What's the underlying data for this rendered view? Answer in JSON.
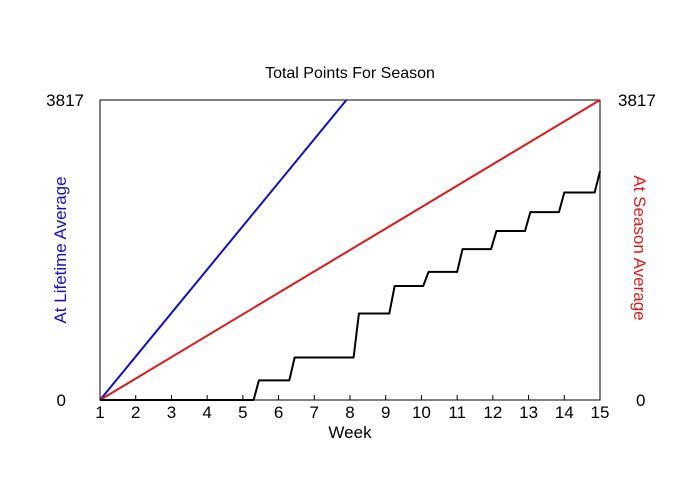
{
  "chart_data": {
    "type": "line",
    "title": "Total Points For Season",
    "xlabel": "Week",
    "ylabel_left": "At Lifetime Average",
    "ylabel_right": "At Season Average",
    "xlim": [
      1,
      15
    ],
    "ylim": [
      0,
      3817
    ],
    "x_ticks": [
      "1",
      "2",
      "3",
      "4",
      "5",
      "6",
      "7",
      "8",
      "9",
      "10",
      "11",
      "12",
      "13",
      "14",
      "15"
    ],
    "y_ticks_left": [
      "0",
      "3817"
    ],
    "y_ticks_right": [
      "0",
      "3817"
    ],
    "colors": {
      "lifetime": "#1010c8",
      "season": "#e01818",
      "actual": "#000000"
    },
    "series": [
      {
        "key": "lifetime",
        "x": [
          1,
          7.9
        ],
        "y": [
          0,
          3817
        ]
      },
      {
        "key": "season",
        "x": [
          1,
          15
        ],
        "y": [
          0,
          3817
        ]
      },
      {
        "key": "actual",
        "x": [
          1,
          5.3,
          5.45,
          6.3,
          6.45,
          8.1,
          8.25,
          9.1,
          9.25,
          10.05,
          10.2,
          11.0,
          11.15,
          11.95,
          12.1,
          12.9,
          13.05,
          13.85,
          14.0,
          14.85,
          15.0
        ],
        "y": [
          0,
          0,
          250,
          250,
          540,
          540,
          1100,
          1100,
          1450,
          1450,
          1630,
          1630,
          1920,
          1920,
          2150,
          2150,
          2390,
          2390,
          2640,
          2640,
          2910
        ]
      }
    ]
  }
}
